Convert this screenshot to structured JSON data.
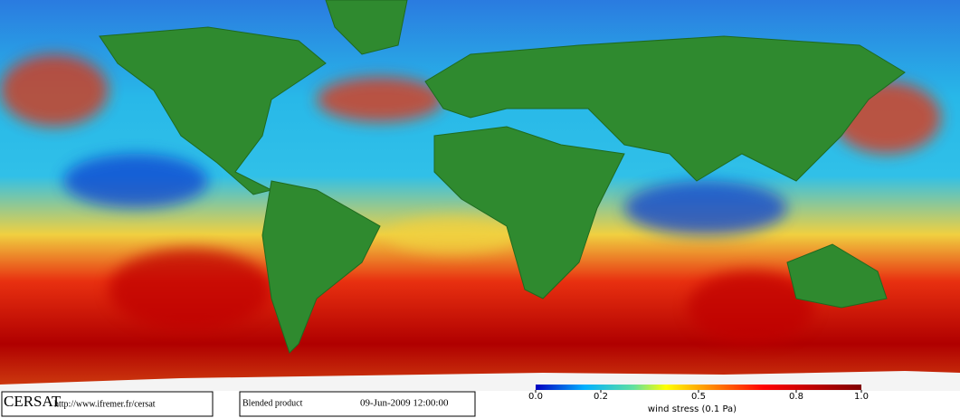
{
  "footer": {
    "logo": "CERSAT",
    "url": "http://www.ifremer.fr/cersat",
    "product": "Blended product",
    "date": "09-Jun-2009 12:00:00"
  },
  "colorbar": {
    "lim": [
      0,
      1
    ],
    "ticks": [
      {
        "value": 0,
        "label": "0.0"
      },
      {
        "value": 0.2,
        "label": "0.2"
      },
      {
        "value": 0.5,
        "label": "0.5"
      },
      {
        "value": 0.8,
        "label": "0.8"
      },
      {
        "value": 1,
        "label": "1.0"
      }
    ],
    "label": "wind stress (0.1 Pa)"
  }
}
